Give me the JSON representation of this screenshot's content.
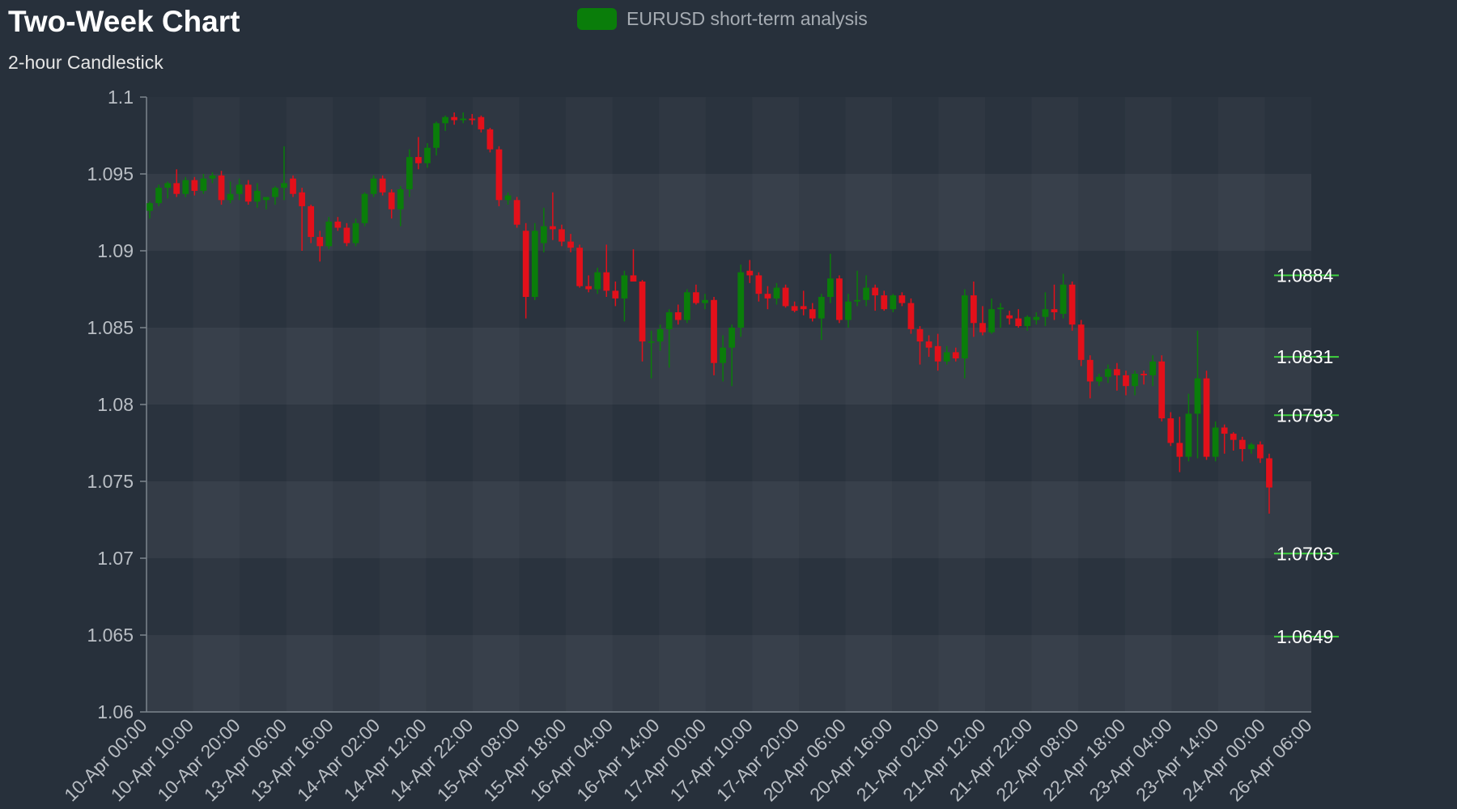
{
  "title": "Two-Week Chart",
  "subtitle": "2-hour Candlestick",
  "legend": {
    "label": "EURUSD short-term analysis",
    "color": "#0a7d0a"
  },
  "colors": {
    "up": "#0a7d0a",
    "down": "#e3101a",
    "background": "#27303b",
    "plot_band_dark": "#2a333e",
    "plot_band_light": "#343c47",
    "level_line": "#3fd23f"
  },
  "chart_data": {
    "type": "candlestick",
    "title": "Two-Week Chart",
    "subtitle": "2-hour Candlestick",
    "series_name": "EURUSD short-term analysis",
    "ylim": [
      1.06,
      1.1
    ],
    "yticks": [
      "1.1",
      "1.095",
      "1.09",
      "1.085",
      "1.08",
      "1.075",
      "1.07",
      "1.065",
      "1.06"
    ],
    "xticks": [
      "10-Apr 00:00",
      "10-Apr 10:00",
      "10-Apr 20:00",
      "13-Apr 06:00",
      "13-Apr 16:00",
      "14-Apr 02:00",
      "14-Apr 12:00",
      "14-Apr 22:00",
      "15-Apr 08:00",
      "15-Apr 18:00",
      "16-Apr 04:00",
      "16-Apr 14:00",
      "17-Apr 00:00",
      "17-Apr 10:00",
      "17-Apr 20:00",
      "20-Apr 06:00",
      "20-Apr 16:00",
      "21-Apr 02:00",
      "21-Apr 12:00",
      "21-Apr 22:00",
      "22-Apr 08:00",
      "22-Apr 18:00",
      "23-Apr 04:00",
      "23-Apr 14:00",
      "24-Apr 00:00",
      "26-Apr 06:00"
    ],
    "levels": [
      {
        "label": "1.0884",
        "value": 1.0884
      },
      {
        "label": "1.0831",
        "value": 1.0831
      },
      {
        "label": "1.0793",
        "value": 1.0793
      },
      {
        "label": "1.0703",
        "value": 1.0703
      },
      {
        "label": "1.0649",
        "value": 1.0649
      }
    ],
    "ohlc": [
      [
        1.0926,
        1.0932,
        1.0921,
        1.0931
      ],
      [
        1.0931,
        1.0943,
        1.0929,
        1.0941
      ],
      [
        1.0941,
        1.0945,
        1.0934,
        1.0944
      ],
      [
        1.0944,
        1.0953,
        1.0935,
        1.0937
      ],
      [
        1.0937,
        1.0948,
        1.0935,
        1.0946
      ],
      [
        1.0946,
        1.0948,
        1.0936,
        1.0939
      ],
      [
        1.0939,
        1.095,
        1.0937,
        1.0947
      ],
      [
        1.0947,
        1.0951,
        1.0944,
        1.0949
      ],
      [
        1.0949,
        1.0952,
        1.093,
        1.0933
      ],
      [
        1.0933,
        1.0945,
        1.0931,
        1.0937
      ],
      [
        1.0937,
        1.0947,
        1.0933,
        1.0943
      ],
      [
        1.0943,
        1.0946,
        1.093,
        1.0932
      ],
      [
        1.0932,
        1.0944,
        1.0928,
        1.0939
      ],
      [
        1.0933,
        1.0935,
        1.0927,
        1.0935
      ],
      [
        1.0935,
        1.0942,
        1.093,
        1.0941
      ],
      [
        1.0941,
        1.0968,
        1.0933,
        1.0944
      ],
      [
        1.0947,
        1.0949,
        1.0935,
        1.0937
      ],
      [
        1.0938,
        1.0941,
        1.09,
        1.0929
      ],
      [
        1.0929,
        1.093,
        1.0905,
        1.0909
      ],
      [
        1.0909,
        1.0913,
        1.0893,
        1.0903
      ],
      [
        1.0903,
        1.0922,
        1.0901,
        1.0919
      ],
      [
        1.0919,
        1.0922,
        1.0913,
        1.0915
      ],
      [
        1.0915,
        1.0918,
        1.0903,
        1.0905
      ],
      [
        1.0905,
        1.0921,
        1.0903,
        1.0918
      ],
      [
        1.0918,
        1.0938,
        1.0916,
        1.0937
      ],
      [
        1.0937,
        1.0949,
        1.0935,
        1.0947
      ],
      [
        1.0947,
        1.0949,
        1.0936,
        1.0938
      ],
      [
        1.0938,
        1.094,
        1.0921,
        1.0927
      ],
      [
        1.0927,
        1.0942,
        1.0916,
        1.094
      ],
      [
        1.094,
        1.0966,
        1.0935,
        1.0961
      ],
      [
        1.0961,
        1.0974,
        1.0953,
        1.0957
      ],
      [
        1.0957,
        1.097,
        1.0954,
        1.0967
      ],
      [
        1.0967,
        1.0984,
        1.0962,
        1.0983
      ],
      [
        1.0983,
        1.0988,
        1.0978,
        1.0987
      ],
      [
        1.0987,
        1.099,
        1.0982,
        1.0985
      ],
      [
        1.0985,
        1.099,
        1.0983,
        1.0986
      ],
      [
        1.0986,
        1.0989,
        1.0982,
        1.0985
      ],
      [
        1.0987,
        1.0988,
        1.0977,
        1.0979
      ],
      [
        1.0979,
        1.098,
        1.0964,
        1.0966
      ],
      [
        1.0966,
        1.0968,
        1.0929,
        1.0933
      ],
      [
        1.0933,
        1.0938,
        1.093,
        1.0936
      ],
      [
        1.0933,
        1.0935,
        1.0915,
        1.0917
      ],
      [
        1.0913,
        1.0918,
        1.0856,
        1.087
      ],
      [
        1.087,
        1.0918,
        1.0868,
        1.0913
      ],
      [
        1.0905,
        1.0928,
        1.0899,
        1.0916
      ],
      [
        1.0916,
        1.0938,
        1.0907,
        1.0914
      ],
      [
        1.0914,
        1.0917,
        1.0903,
        1.0906
      ],
      [
        1.0906,
        1.0911,
        1.0899,
        1.0902
      ],
      [
        1.0902,
        1.0904,
        1.0876,
        1.0877
      ],
      [
        1.0877,
        1.0884,
        1.0873,
        1.0875
      ],
      [
        1.0875,
        1.0889,
        1.0872,
        1.0886
      ],
      [
        1.0886,
        1.0904,
        1.087,
        1.0874
      ],
      [
        1.0874,
        1.088,
        1.0864,
        1.0869
      ],
      [
        1.0869,
        1.0887,
        1.0854,
        1.0884
      ],
      [
        1.0884,
        1.0901,
        1.0881,
        1.088
      ],
      [
        1.088,
        1.0881,
        1.0828,
        1.0841
      ],
      [
        1.0841,
        1.0848,
        1.0817,
        1.0841
      ],
      [
        1.0841,
        1.0852,
        1.0835,
        1.0849
      ],
      [
        1.0849,
        1.0862,
        1.0824,
        1.086
      ],
      [
        1.086,
        1.0865,
        1.0852,
        1.0855
      ],
      [
        1.0855,
        1.0875,
        1.0853,
        1.0873
      ],
      [
        1.0873,
        1.0878,
        1.0865,
        1.0866
      ],
      [
        1.0866,
        1.0872,
        1.0862,
        1.0868
      ],
      [
        1.0868,
        1.087,
        1.0819,
        1.0827
      ],
      [
        1.0827,
        1.0845,
        1.0815,
        1.0837
      ],
      [
        1.0837,
        1.0852,
        1.0812,
        1.085
      ],
      [
        1.085,
        1.0891,
        1.0844,
        1.0886
      ],
      [
        1.0887,
        1.0894,
        1.0879,
        1.0884
      ],
      [
        1.0884,
        1.0886,
        1.0867,
        1.0872
      ],
      [
        1.0872,
        1.0877,
        1.0862,
        1.0869
      ],
      [
        1.0869,
        1.0879,
        1.0865,
        1.0876
      ],
      [
        1.0876,
        1.0878,
        1.0863,
        1.0864
      ],
      [
        1.0864,
        1.0867,
        1.086,
        1.0861
      ],
      [
        1.0864,
        1.0874,
        1.0858,
        1.0862
      ],
      [
        1.0862,
        1.0866,
        1.0854,
        1.0856
      ],
      [
        1.0856,
        1.0872,
        1.0842,
        1.087
      ],
      [
        1.087,
        1.0898,
        1.0866,
        1.0882
      ],
      [
        1.0882,
        1.0884,
        1.0853,
        1.0855
      ],
      [
        1.0855,
        1.0872,
        1.085,
        1.0867
      ],
      [
        1.0867,
        1.0887,
        1.0864,
        1.0868
      ],
      [
        1.0868,
        1.0884,
        1.0864,
        1.0876
      ],
      [
        1.0876,
        1.0878,
        1.0861,
        1.0871
      ],
      [
        1.0871,
        1.0874,
        1.0861,
        1.0862
      ],
      [
        1.0862,
        1.0872,
        1.086,
        1.0871
      ],
      [
        1.0871,
        1.0873,
        1.0864,
        1.0866
      ],
      [
        1.0866,
        1.0869,
        1.0846,
        1.0849
      ],
      [
        1.0849,
        1.0851,
        1.0826,
        1.0841
      ],
      [
        1.0841,
        1.0845,
        1.0831,
        1.0837
      ],
      [
        1.0838,
        1.0846,
        1.0822,
        1.0828
      ],
      [
        1.0828,
        1.0838,
        1.0826,
        1.0834
      ],
      [
        1.0834,
        1.0837,
        1.0828,
        1.083
      ],
      [
        1.083,
        1.0875,
        1.0817,
        1.0871
      ],
      [
        1.0871,
        1.088,
        1.0844,
        1.0853
      ],
      [
        1.0853,
        1.0864,
        1.0845,
        1.0847
      ],
      [
        1.0847,
        1.0869,
        1.0846,
        1.0862
      ],
      [
        1.0862,
        1.0866,
        1.085,
        1.0863
      ],
      [
        1.0858,
        1.0861,
        1.0852,
        1.0856
      ],
      [
        1.0856,
        1.0862,
        1.085,
        1.0851
      ],
      [
        1.0851,
        1.0858,
        1.0848,
        1.0857
      ],
      [
        1.0855,
        1.086,
        1.0852,
        1.0857
      ],
      [
        1.0857,
        1.0873,
        1.0851,
        1.0862
      ],
      [
        1.0862,
        1.0878,
        1.0855,
        1.086
      ],
      [
        1.0859,
        1.0885,
        1.0856,
        1.0878
      ],
      [
        1.0878,
        1.088,
        1.0848,
        1.0852
      ],
      [
        1.0852,
        1.0855,
        1.0825,
        1.0829
      ],
      [
        1.0829,
        1.0832,
        1.0804,
        1.0815
      ],
      [
        1.0815,
        1.082,
        1.0812,
        1.0818
      ],
      [
        1.0818,
        1.0826,
        1.0814,
        1.0823
      ],
      [
        1.0823,
        1.0827,
        1.0809,
        1.0819
      ],
      [
        1.0819,
        1.0822,
        1.0806,
        1.0812
      ],
      [
        1.0812,
        1.0822,
        1.0806,
        1.082
      ],
      [
        1.082,
        1.0822,
        1.0813,
        1.0819
      ],
      [
        1.0819,
        1.0832,
        1.0812,
        1.0828
      ],
      [
        1.0828,
        1.0832,
        1.0789,
        1.0791
      ],
      [
        1.0791,
        1.0795,
        1.0773,
        1.0775
      ],
      [
        1.0775,
        1.0792,
        1.0756,
        1.0766
      ],
      [
        1.0766,
        1.0807,
        1.0763,
        1.0794
      ],
      [
        1.0794,
        1.0848,
        1.0765,
        1.0817
      ],
      [
        1.0817,
        1.0822,
        1.0764,
        1.0766
      ],
      [
        1.0766,
        1.0789,
        1.0763,
        1.0785
      ],
      [
        1.0785,
        1.0787,
        1.0768,
        1.0781
      ],
      [
        1.0781,
        1.0782,
        1.077,
        1.0777
      ],
      [
        1.0777,
        1.0779,
        1.0763,
        1.0771
      ],
      [
        1.0771,
        1.0775,
        1.0768,
        1.0774
      ],
      [
        1.0774,
        1.0776,
        1.0762,
        1.0765
      ],
      [
        1.0765,
        1.0768,
        1.0729,
        1.0746
      ]
    ]
  }
}
